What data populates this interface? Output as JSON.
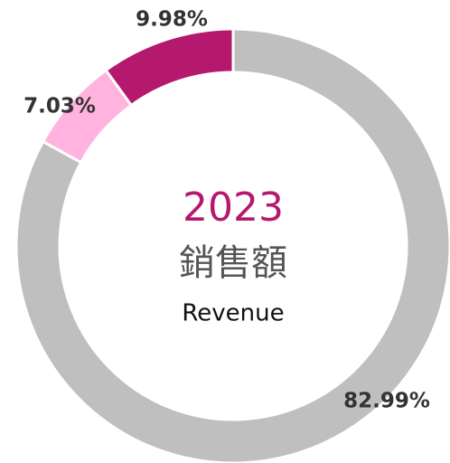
{
  "chart_data": {
    "type": "donut",
    "center_text": {
      "year": "2023",
      "label": "銷售額",
      "sublabel": "Revenue"
    },
    "values": [
      82.99,
      7.03,
      9.98
    ],
    "value_labels": [
      "82.99%",
      "7.03%",
      "9.98%"
    ],
    "colors": [
      "#bfbfbf",
      "#ffb3de",
      "#b5196e"
    ]
  }
}
